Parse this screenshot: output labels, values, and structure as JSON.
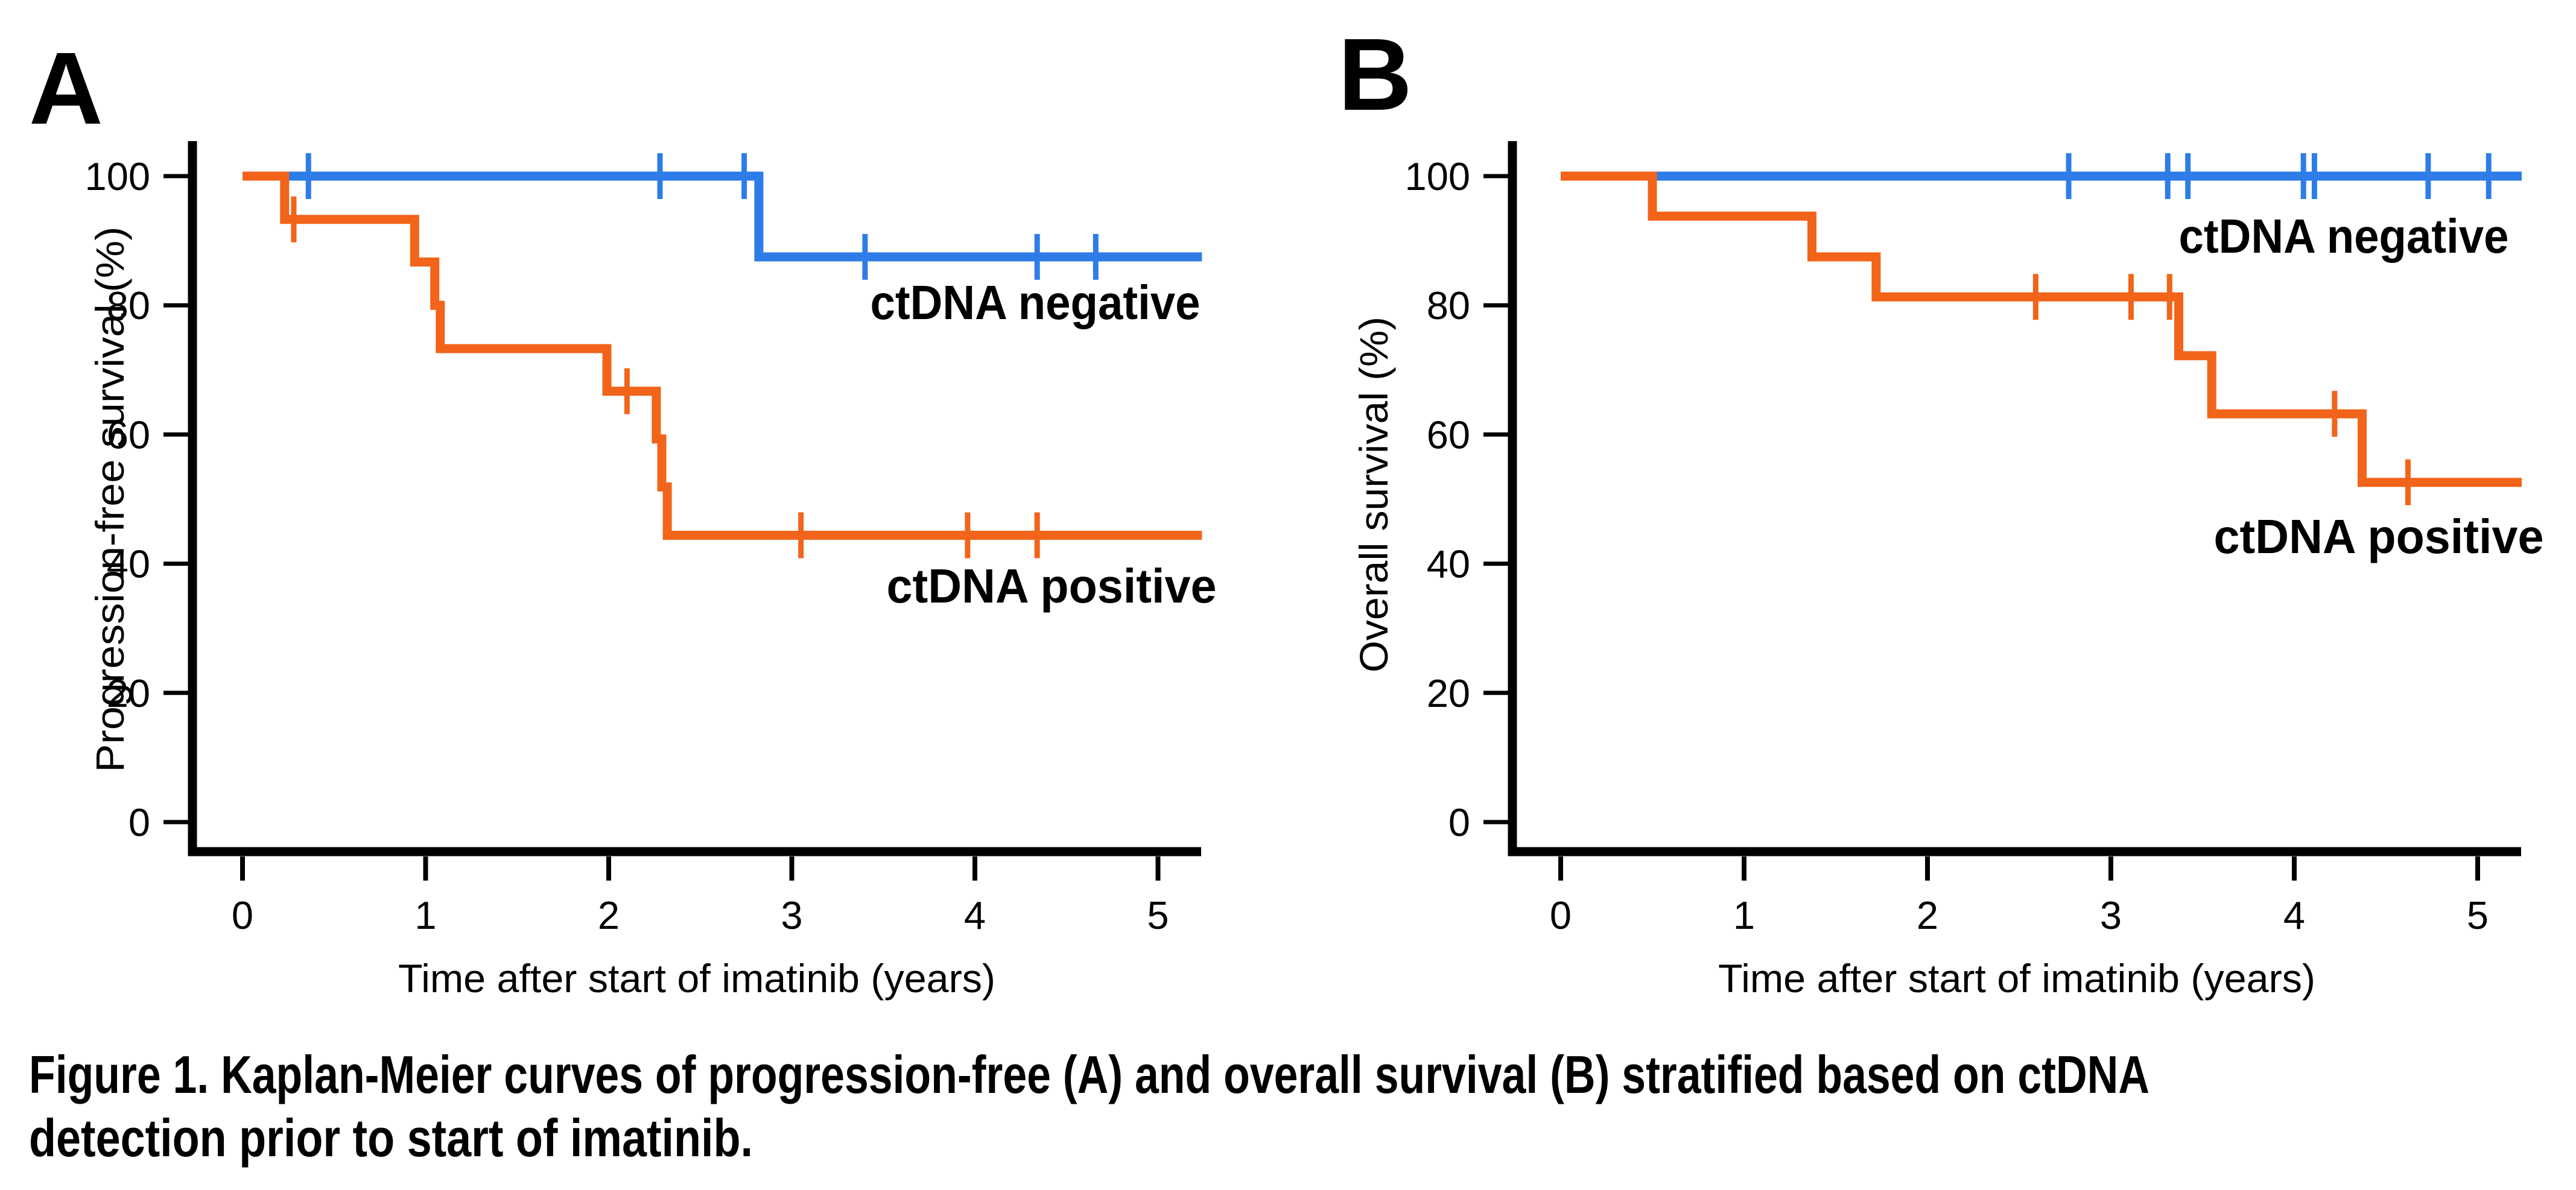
{
  "figure": {
    "panel_a_letter": "A",
    "panel_b_letter": "B",
    "caption_line1": "Figure 1. Kaplan-Meier curves of progression-free (A) and overall survival (B) stratified based on ctDNA",
    "caption_line2": "detection prior to start of imatinib."
  },
  "colors": {
    "ctdna_negative": "#2E7CE8",
    "ctdna_positive": "#F26419",
    "axis": "#000000",
    "background": "#FFFFFF"
  },
  "chart_data": [
    {
      "type": "line",
      "panel": "A",
      "subtype": "kaplan-meier-step",
      "ylabel": "Progression-free survival (%)",
      "xlabel": "Time after start of imatinib (years)",
      "xlim": [
        0,
        5.25
      ],
      "ylim": [
        0,
        100
      ],
      "xticks": [
        0,
        1,
        2,
        3,
        4,
        5
      ],
      "yticks": [
        0,
        20,
        40,
        60,
        80,
        100
      ],
      "grid": "off",
      "legend": "inline-labels",
      "series": [
        {
          "name": "ctDNA negative",
          "color_key": "ctdna_negative",
          "label_anchor": {
            "t": 4.33,
            "s": 80.5
          },
          "steps": [
            [
              0,
              100
            ],
            [
              2.82,
              87.5
            ],
            [
              5.24,
              87.5
            ]
          ],
          "censors": [
            [
              0.36,
              100
            ],
            [
              2.28,
              100
            ],
            [
              2.74,
              100
            ],
            [
              3.4,
              87.5
            ],
            [
              4.34,
              87.5
            ],
            [
              4.66,
              87.5
            ]
          ]
        },
        {
          "name": "ctDNA positive",
          "color_key": "ctdna_positive",
          "label_anchor": {
            "t": 4.42,
            "s": 36.6
          },
          "steps": [
            [
              0,
              100
            ],
            [
              0.23,
              93.3
            ],
            [
              0.94,
              86.7
            ],
            [
              1.05,
              80.0
            ],
            [
              1.08,
              73.3
            ],
            [
              1.99,
              66.7
            ],
            [
              2.26,
              59.3
            ],
            [
              2.29,
              51.9
            ],
            [
              2.32,
              44.4
            ],
            [
              5.24,
              44.4
            ]
          ],
          "censors": [
            [
              0.28,
              93.3
            ],
            [
              2.1,
              66.7
            ],
            [
              3.05,
              44.4
            ],
            [
              3.96,
              44.4
            ],
            [
              4.34,
              44.4
            ]
          ]
        }
      ]
    },
    {
      "type": "line",
      "panel": "B",
      "subtype": "kaplan-meier-step",
      "ylabel": "Overall survival (%)",
      "xlabel": "Time after start of imatinib (years)",
      "xlim": [
        0,
        5.25
      ],
      "ylim": [
        0,
        100
      ],
      "xticks": [
        0,
        1,
        2,
        3,
        4,
        5
      ],
      "yticks": [
        0,
        20,
        40,
        60,
        80,
        100
      ],
      "grid": "off",
      "legend": "inline-labels",
      "series": [
        {
          "name": "ctDNA negative",
          "color_key": "ctdna_negative",
          "label_anchor": {
            "t": 4.27,
            "s": 90.8
          },
          "steps": [
            [
              0,
              100
            ],
            [
              5.24,
              100
            ]
          ],
          "censors": [
            [
              2.77,
              100
            ],
            [
              3.31,
              100
            ],
            [
              3.42,
              100
            ],
            [
              4.05,
              100
            ],
            [
              4.11,
              100
            ],
            [
              4.73,
              100
            ],
            [
              5.06,
              100
            ]
          ]
        },
        {
          "name": "ctDNA positive",
          "color_key": "ctdna_positive",
          "label_anchor": {
            "t": 4.46,
            "s": 44.3
          },
          "steps": [
            [
              0,
              100
            ],
            [
              0.5,
              93.8
            ],
            [
              1.37,
              87.5
            ],
            [
              1.72,
              81.3
            ],
            [
              3.37,
              72.2
            ],
            [
              3.55,
              63.2
            ],
            [
              4.37,
              52.6
            ],
            [
              5.24,
              52.6
            ]
          ],
          "censors": [
            [
              2.59,
              81.3
            ],
            [
              3.11,
              81.3
            ],
            [
              3.32,
              81.3
            ],
            [
              4.22,
              63.2
            ],
            [
              4.62,
              52.6
            ]
          ]
        }
      ]
    }
  ]
}
